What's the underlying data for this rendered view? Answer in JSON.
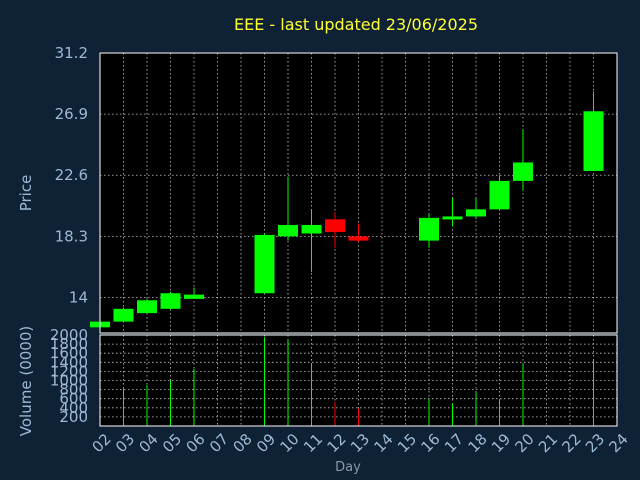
{
  "chart_data": {
    "type": "candlestick",
    "title": "EEE - last updated 23/06/2025",
    "xlabel": "Day",
    "x_ticks": [
      "02",
      "03",
      "04",
      "05",
      "06",
      "07",
      "08",
      "09",
      "10",
      "11",
      "12",
      "13",
      "14",
      "15",
      "16",
      "17",
      "18",
      "19",
      "20",
      "21",
      "22",
      "23",
      "24"
    ],
    "price": {
      "ylabel": "Price",
      "ylim": [
        11.5,
        31.2
      ],
      "y_ticks": [
        14,
        18.3,
        22.6,
        26.9,
        31.2
      ],
      "y_tick_labels": [
        "14",
        "18.3",
        "22.6",
        "26.9",
        "31.2"
      ],
      "candles": [
        {
          "day": "02",
          "open": 11.9,
          "high": 12.3,
          "low": 11.9,
          "close": 12.3
        },
        {
          "day": "03",
          "open": 12.3,
          "high": 13.3,
          "low": 12.3,
          "close": 13.2
        },
        {
          "day": "04",
          "open": 12.9,
          "high": 13.9,
          "low": 12.9,
          "close": 13.8
        },
        {
          "day": "05",
          "open": 13.2,
          "high": 14.4,
          "low": 13.2,
          "close": 14.3
        },
        {
          "day": "06",
          "open": 13.9,
          "high": 14.7,
          "low": 13.9,
          "close": 14.2
        },
        {
          "day": "09",
          "open": 14.3,
          "high": 18.5,
          "low": 14.3,
          "close": 18.4
        },
        {
          "day": "10",
          "open": 18.3,
          "high": 22.5,
          "low": 18.0,
          "close": 19.1
        },
        {
          "day": "11",
          "open": 18.5,
          "high": 20.2,
          "low": 15.8,
          "close": 19.1
        },
        {
          "day": "12",
          "open": 19.5,
          "high": 20.0,
          "low": 17.5,
          "close": 18.6
        },
        {
          "day": "13",
          "open": 18.3,
          "high": 19.2,
          "low": 17.9,
          "close": 18.0
        },
        {
          "day": "16",
          "open": 18.0,
          "high": 19.9,
          "low": 17.5,
          "close": 19.6
        },
        {
          "day": "17",
          "open": 19.5,
          "high": 21.0,
          "low": 19.0,
          "close": 19.7
        },
        {
          "day": "18",
          "open": 19.7,
          "high": 21.0,
          "low": 19.5,
          "close": 20.2
        },
        {
          "day": "19",
          "open": 20.2,
          "high": 22.6,
          "low": 20.1,
          "close": 22.2
        },
        {
          "day": "20",
          "open": 22.2,
          "high": 25.8,
          "low": 21.5,
          "close": 23.5
        },
        {
          "day": "23",
          "open": 22.9,
          "high": 28.5,
          "low": 22.9,
          "close": 27.1
        }
      ]
    },
    "volume": {
      "ylabel": "Volume (0000)",
      "ylim": [
        0,
        2000
      ],
      "y_ticks": [
        200,
        400,
        600,
        800,
        1000,
        1200,
        1400,
        1600,
        1800,
        2000
      ],
      "y_tick_labels": [
        "200",
        "400",
        "600",
        "800",
        "1000",
        "1200",
        "1400",
        "1600",
        "1800",
        "2000"
      ],
      "bars": [
        {
          "day": "03",
          "value": 820,
          "direction": "up"
        },
        {
          "day": "04",
          "value": 900,
          "direction": "up"
        },
        {
          "day": "05",
          "value": 1000,
          "direction": "up"
        },
        {
          "day": "06",
          "value": 1250,
          "direction": "up"
        },
        {
          "day": "09",
          "value": 1950,
          "direction": "up"
        },
        {
          "day": "10",
          "value": 1900,
          "direction": "up"
        },
        {
          "day": "11",
          "value": 1350,
          "direction": "up"
        },
        {
          "day": "12",
          "value": 530,
          "direction": "down"
        },
        {
          "day": "13",
          "value": 380,
          "direction": "down"
        },
        {
          "day": "16",
          "value": 600,
          "direction": "up"
        },
        {
          "day": "17",
          "value": 500,
          "direction": "up"
        },
        {
          "day": "18",
          "value": 750,
          "direction": "up"
        },
        {
          "day": "19",
          "value": 580,
          "direction": "up"
        },
        {
          "day": "20",
          "value": 1380,
          "direction": "up"
        },
        {
          "day": "23",
          "value": 1450,
          "direction": "up"
        }
      ]
    },
    "colors": {
      "background": "#0f2135",
      "plot_background": "#000000",
      "up": "#00ff00",
      "down": "#ff0000",
      "grid": "#c8c8c8",
      "title": "#ffff33",
      "tick_label": "#9bbad6",
      "xlabel": "#8a99a8"
    },
    "grid": true
  }
}
